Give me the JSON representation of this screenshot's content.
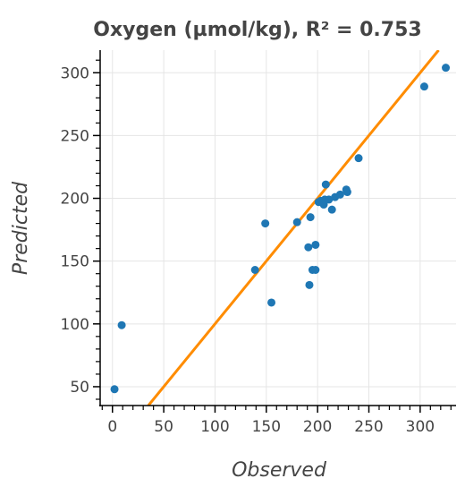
{
  "chart_data": {
    "type": "scatter",
    "title": "Oxygen (µmol/kg), R² = 0.753",
    "xlabel": "Observed",
    "ylabel": "Predicted",
    "xlim": [
      -12,
      335
    ],
    "ylim": [
      35,
      318
    ],
    "xticks": [
      0,
      50,
      100,
      150,
      200,
      250,
      300
    ],
    "yticks": [
      50,
      100,
      150,
      200,
      250,
      300
    ],
    "xtick_labels": [
      "0",
      "50",
      "100",
      "150",
      "200",
      "250",
      "300"
    ],
    "ytick_labels": [
      "50",
      "100",
      "150",
      "200",
      "250",
      "300"
    ],
    "grid": true,
    "series": [
      {
        "type": "scatter",
        "color": "#1f77b4",
        "points": [
          [
            2,
            48
          ],
          [
            9,
            99
          ],
          [
            139,
            143
          ],
          [
            149,
            180
          ],
          [
            155,
            117
          ],
          [
            180,
            181
          ],
          [
            191,
            161
          ],
          [
            192,
            131
          ],
          [
            193,
            185
          ],
          [
            195,
            143
          ],
          [
            198,
            163
          ],
          [
            198,
            143
          ],
          [
            201,
            197
          ],
          [
            203,
            198
          ],
          [
            206,
            195
          ],
          [
            207,
            199
          ],
          [
            208,
            211
          ],
          [
            211,
            199
          ],
          [
            214,
            191
          ],
          [
            217,
            201
          ],
          [
            222,
            203
          ],
          [
            228,
            207
          ],
          [
            229,
            205
          ],
          [
            240,
            232
          ],
          [
            304,
            289
          ],
          [
            325,
            304
          ]
        ]
      },
      {
        "type": "line",
        "color": "#ff8c00",
        "points": [
          [
            35,
            35
          ],
          [
            318,
            318
          ]
        ]
      }
    ]
  }
}
